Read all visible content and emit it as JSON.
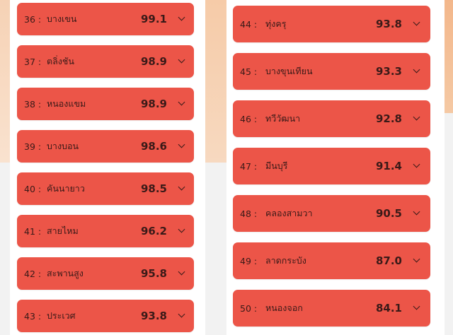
{
  "left_list": [
    {
      "rank": "36 :",
      "name": "บางเขน",
      "score": "99.1"
    },
    {
      "rank": "37 :",
      "name": "ตลิ่งชัน",
      "score": "98.9"
    },
    {
      "rank": "38 :",
      "name": "หนองแขม",
      "score": "98.9"
    },
    {
      "rank": "39 :",
      "name": "บางบอน",
      "score": "98.6"
    },
    {
      "rank": "40 :",
      "name": "คันนายาว",
      "score": "98.5"
    },
    {
      "rank": "41 :",
      "name": "สายไหม",
      "score": "96.2"
    },
    {
      "rank": "42 :",
      "name": "สะพานสูง",
      "score": "95.8"
    },
    {
      "rank": "43 :",
      "name": "ประเวศ",
      "score": "93.8"
    }
  ],
  "right_list": [
    {
      "rank": "44 :",
      "name": "ทุ่งครุ",
      "score": "93.8"
    },
    {
      "rank": "45 :",
      "name": "บางขุนเทียน",
      "score": "93.3"
    },
    {
      "rank": "46 :",
      "name": "ทวีวัฒนา",
      "score": "92.8"
    },
    {
      "rank": "47 :",
      "name": "มีนบุรี",
      "score": "91.4"
    },
    {
      "rank": "48 :",
      "name": "คลองสามวา",
      "score": "90.5"
    },
    {
      "rank": "49 :",
      "name": "ลาดกระบัง",
      "score": "87.0"
    },
    {
      "rank": "50 :",
      "name": "หนองจอก",
      "score": "84.1"
    }
  ],
  "icons": {
    "expand": "chevron-down-icon"
  },
  "colors": {
    "item_bg": "#ec5548",
    "text": "#3a1a18"
  }
}
